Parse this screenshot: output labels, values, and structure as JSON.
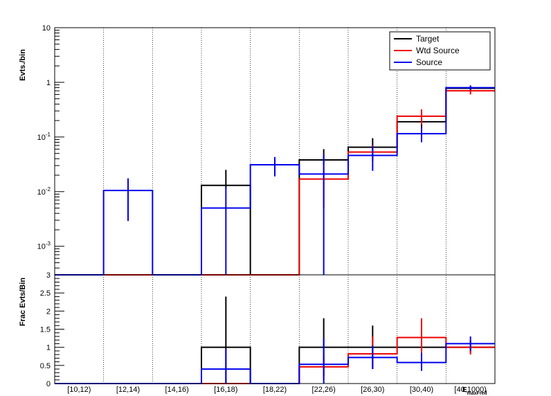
{
  "chart_data": [
    {
      "type": "histogram",
      "ylabel": "Evts./bin",
      "yscale": "log",
      "ylim": [
        0.0003,
        10
      ],
      "y_ticks": [
        {
          "value": 10,
          "base": "10",
          "exp": ""
        },
        {
          "value": 1,
          "base": "1",
          "exp": ""
        },
        {
          "value": 0.1,
          "base": "10",
          "exp": "-1"
        },
        {
          "value": 0.01,
          "base": "10",
          "exp": "-2"
        },
        {
          "value": 0.001,
          "base": "10",
          "exp": "-3"
        }
      ],
      "categories": [
        "[10,12)",
        "[12,14)",
        "[14,16)",
        "[16,18)",
        "[18,22)",
        "[22,26)",
        "[26,30)",
        "[30,40)",
        "[40,1000)"
      ],
      "legend": {
        "position": "top-right",
        "entries": [
          "Target",
          "Wtd Source",
          "Source"
        ]
      },
      "grid": "vertical-dotted",
      "series": [
        {
          "name": "Target",
          "color": "#000000",
          "values": [
            0,
            0,
            0,
            0.013,
            0,
            0.038,
            0.065,
            0.19,
            0.78
          ],
          "err_low": [
            0,
            0,
            0,
            0.0114,
            0,
            0.03,
            0.045,
            0.13,
            0.7
          ],
          "err_high": [
            0,
            0,
            0,
            0.025,
            0,
            0.06,
            0.095,
            0.25,
            0.86
          ]
        },
        {
          "name": "Wtd Source",
          "color": "#ee0000",
          "values": [
            0,
            0,
            0,
            0,
            0,
            0.017,
            0.053,
            0.24,
            0.7
          ],
          "err_low": [
            0,
            0,
            0,
            0,
            0,
            0.005,
            0.036,
            0.17,
            0.6
          ],
          "err_high": [
            0,
            0,
            0,
            0,
            0,
            0.029,
            0.07,
            0.32,
            0.8
          ]
        },
        {
          "name": "Source",
          "color": "#0000ee",
          "values": [
            0,
            0.0105,
            0,
            0.005,
            0.031,
            0.021,
            0.046,
            0.115,
            0.8
          ],
          "err_low": [
            0,
            0.0029,
            0,
            0,
            0.019,
            0,
            0.024,
            0.08,
            0.72
          ],
          "err_high": [
            0,
            0.0175,
            0,
            0.012,
            0.043,
            0.048,
            0.068,
            0.15,
            0.88
          ]
        }
      ]
    },
    {
      "type": "histogram",
      "ylabel": "Frac Evts/Bin",
      "xlabel": "E_maxFrell",
      "ylim": [
        0,
        3
      ],
      "y_ticks": [
        "0",
        "0.5",
        "1",
        "1.5",
        "2",
        "2.5",
        "3"
      ],
      "categories": [
        "[10,12)",
        "[12,14)",
        "[14,16)",
        "[16,18)",
        "[18,22)",
        "[22,26)",
        "[26,30)",
        "[30,40)",
        "[40,1000)"
      ],
      "series": [
        {
          "name": "Target",
          "color": "#000000",
          "values": [
            0,
            0,
            0,
            1.0,
            0,
            1.0,
            1.0,
            1.0,
            1.0
          ],
          "err_low": [
            0,
            0,
            0,
            0,
            0,
            0.2,
            0.4,
            0.6,
            0.85
          ],
          "err_high": [
            0,
            0,
            0,
            2.4,
            0,
            1.8,
            1.6,
            1.4,
            1.15
          ]
        },
        {
          "name": "Wtd Source",
          "color": "#ee0000",
          "values": [
            0,
            0,
            0,
            0,
            0,
            0.46,
            0.82,
            1.27,
            1.0
          ],
          "err_low": [
            0,
            0,
            0,
            0,
            0,
            0.1,
            0.45,
            0.75,
            0.8
          ],
          "err_high": [
            0,
            0,
            0,
            0,
            0,
            0.8,
            1.3,
            1.8,
            1.2
          ]
        },
        {
          "name": "Source",
          "color": "#0000ee",
          "values": [
            0,
            0,
            0,
            0.4,
            0,
            0.53,
            0.72,
            0.58,
            1.1
          ],
          "err_low": [
            0,
            0,
            0,
            0,
            0,
            0,
            0.4,
            0.35,
            0.9
          ],
          "err_high": [
            0,
            0,
            0,
            0.95,
            0,
            1.25,
            1.05,
            0.85,
            1.3
          ]
        }
      ]
    }
  ]
}
